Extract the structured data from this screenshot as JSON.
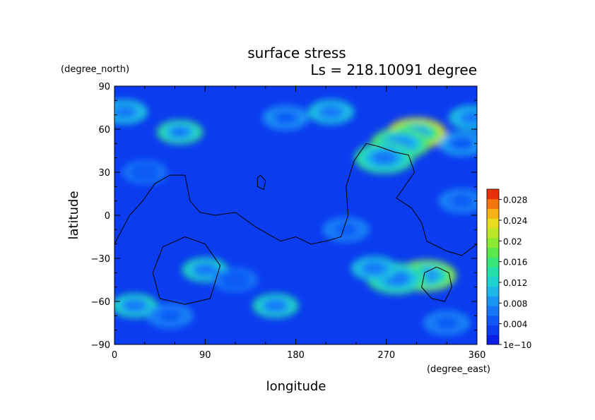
{
  "chart_data": {
    "type": "heatmap",
    "title": "surface stress",
    "subtitle": "Ls = 218.10091 degree",
    "xlabel": "longitude",
    "ylabel": "latitude",
    "x_unit": "(degree_east)",
    "y_unit": "(degree_north)",
    "xlim": [
      0,
      360
    ],
    "ylim": [
      -90,
      90
    ],
    "x_ticks": [
      "0",
      "90",
      "180",
      "270",
      "360"
    ],
    "y_ticks": [
      "90",
      "60",
      "30",
      "0",
      "−30",
      "−60",
      "−90"
    ],
    "colorbar": {
      "min": 0,
      "max": 0.03,
      "tick_labels": [
        "1e−10",
        "0.004",
        "0.008",
        "0.012",
        "0.016",
        "0.02",
        "0.024",
        "0.028"
      ],
      "colors": [
        "#0a1ee6",
        "#0b3cf0",
        "#1058f5",
        "#1676f8",
        "#1a96f5",
        "#1cb8ea",
        "#1ed2d2",
        "#22e0a8",
        "#38e678",
        "#5ae84a",
        "#8cea30",
        "#bce628",
        "#e8dc1e",
        "#f6b214",
        "#f4760c",
        "#e8300a"
      ]
    },
    "hotspots": [
      {
        "lon": 300,
        "lat": 57,
        "value": 0.023
      },
      {
        "lon": 284,
        "lat": 50,
        "value": 0.018
      },
      {
        "lon": 268,
        "lat": 40,
        "value": 0.016
      },
      {
        "lon": 310,
        "lat": -42,
        "value": 0.02
      },
      {
        "lon": 280,
        "lat": -44,
        "value": 0.016
      },
      {
        "lon": 258,
        "lat": -37,
        "value": 0.012
      },
      {
        "lon": 90,
        "lat": -38,
        "value": 0.014
      },
      {
        "lon": 65,
        "lat": 58,
        "value": 0.015
      },
      {
        "lon": 10,
        "lat": 72,
        "value": 0.013
      },
      {
        "lon": 215,
        "lat": 72,
        "value": 0.012
      },
      {
        "lon": 355,
        "lat": 68,
        "value": 0.012
      },
      {
        "lon": 345,
        "lat": 50,
        "value": 0.01
      },
      {
        "lon": 20,
        "lat": -63,
        "value": 0.014
      },
      {
        "lon": 160,
        "lat": -63,
        "value": 0.014
      },
      {
        "lon": 55,
        "lat": -70,
        "value": 0.008
      },
      {
        "lon": 330,
        "lat": -75,
        "value": 0.008
      },
      {
        "lon": 170,
        "lat": 68,
        "value": 0.009
      },
      {
        "lon": 345,
        "lat": 10,
        "value": 0.008
      },
      {
        "lon": 230,
        "lat": -10,
        "value": 0.008
      },
      {
        "lon": 30,
        "lat": 30,
        "value": 0.007
      },
      {
        "lon": 120,
        "lat": -45,
        "value": 0.007
      }
    ],
    "contours": [
      [
        [
          0,
          -20
        ],
        [
          15,
          0
        ],
        [
          28,
          10
        ],
        [
          40,
          22
        ],
        [
          55,
          28
        ],
        [
          70,
          28
        ],
        [
          75,
          10
        ],
        [
          85,
          2
        ],
        [
          100,
          0
        ],
        [
          120,
          2
        ],
        [
          140,
          -8
        ],
        [
          165,
          -18
        ],
        [
          180,
          -15
        ],
        [
          195,
          -20
        ],
        [
          210,
          -18
        ],
        [
          225,
          -15
        ],
        [
          232,
          0
        ],
        [
          230,
          20
        ],
        [
          238,
          38
        ],
        [
          250,
          50
        ],
        [
          262,
          48
        ],
        [
          278,
          44
        ],
        [
          292,
          42
        ],
        [
          298,
          30
        ],
        [
          280,
          12
        ],
        [
          295,
          5
        ],
        [
          305,
          -5
        ],
        [
          310,
          -18
        ],
        [
          330,
          -25
        ],
        [
          345,
          -28
        ],
        [
          360,
          -20
        ]
      ],
      [
        [
          145,
          28
        ],
        [
          150,
          24
        ],
        [
          148,
          18
        ],
        [
          142,
          20
        ],
        [
          142,
          26
        ],
        [
          145,
          28
        ]
      ],
      [
        [
          70,
          -15
        ],
        [
          90,
          -20
        ],
        [
          105,
          -35
        ],
        [
          95,
          -58
        ],
        [
          70,
          -62
        ],
        [
          45,
          -58
        ],
        [
          38,
          -40
        ],
        [
          48,
          -22
        ],
        [
          70,
          -15
        ]
      ],
      [
        [
          320,
          -36
        ],
        [
          332,
          -40
        ],
        [
          335,
          -50
        ],
        [
          328,
          -60
        ],
        [
          315,
          -58
        ],
        [
          305,
          -50
        ],
        [
          308,
          -40
        ],
        [
          320,
          -36
        ]
      ]
    ]
  }
}
